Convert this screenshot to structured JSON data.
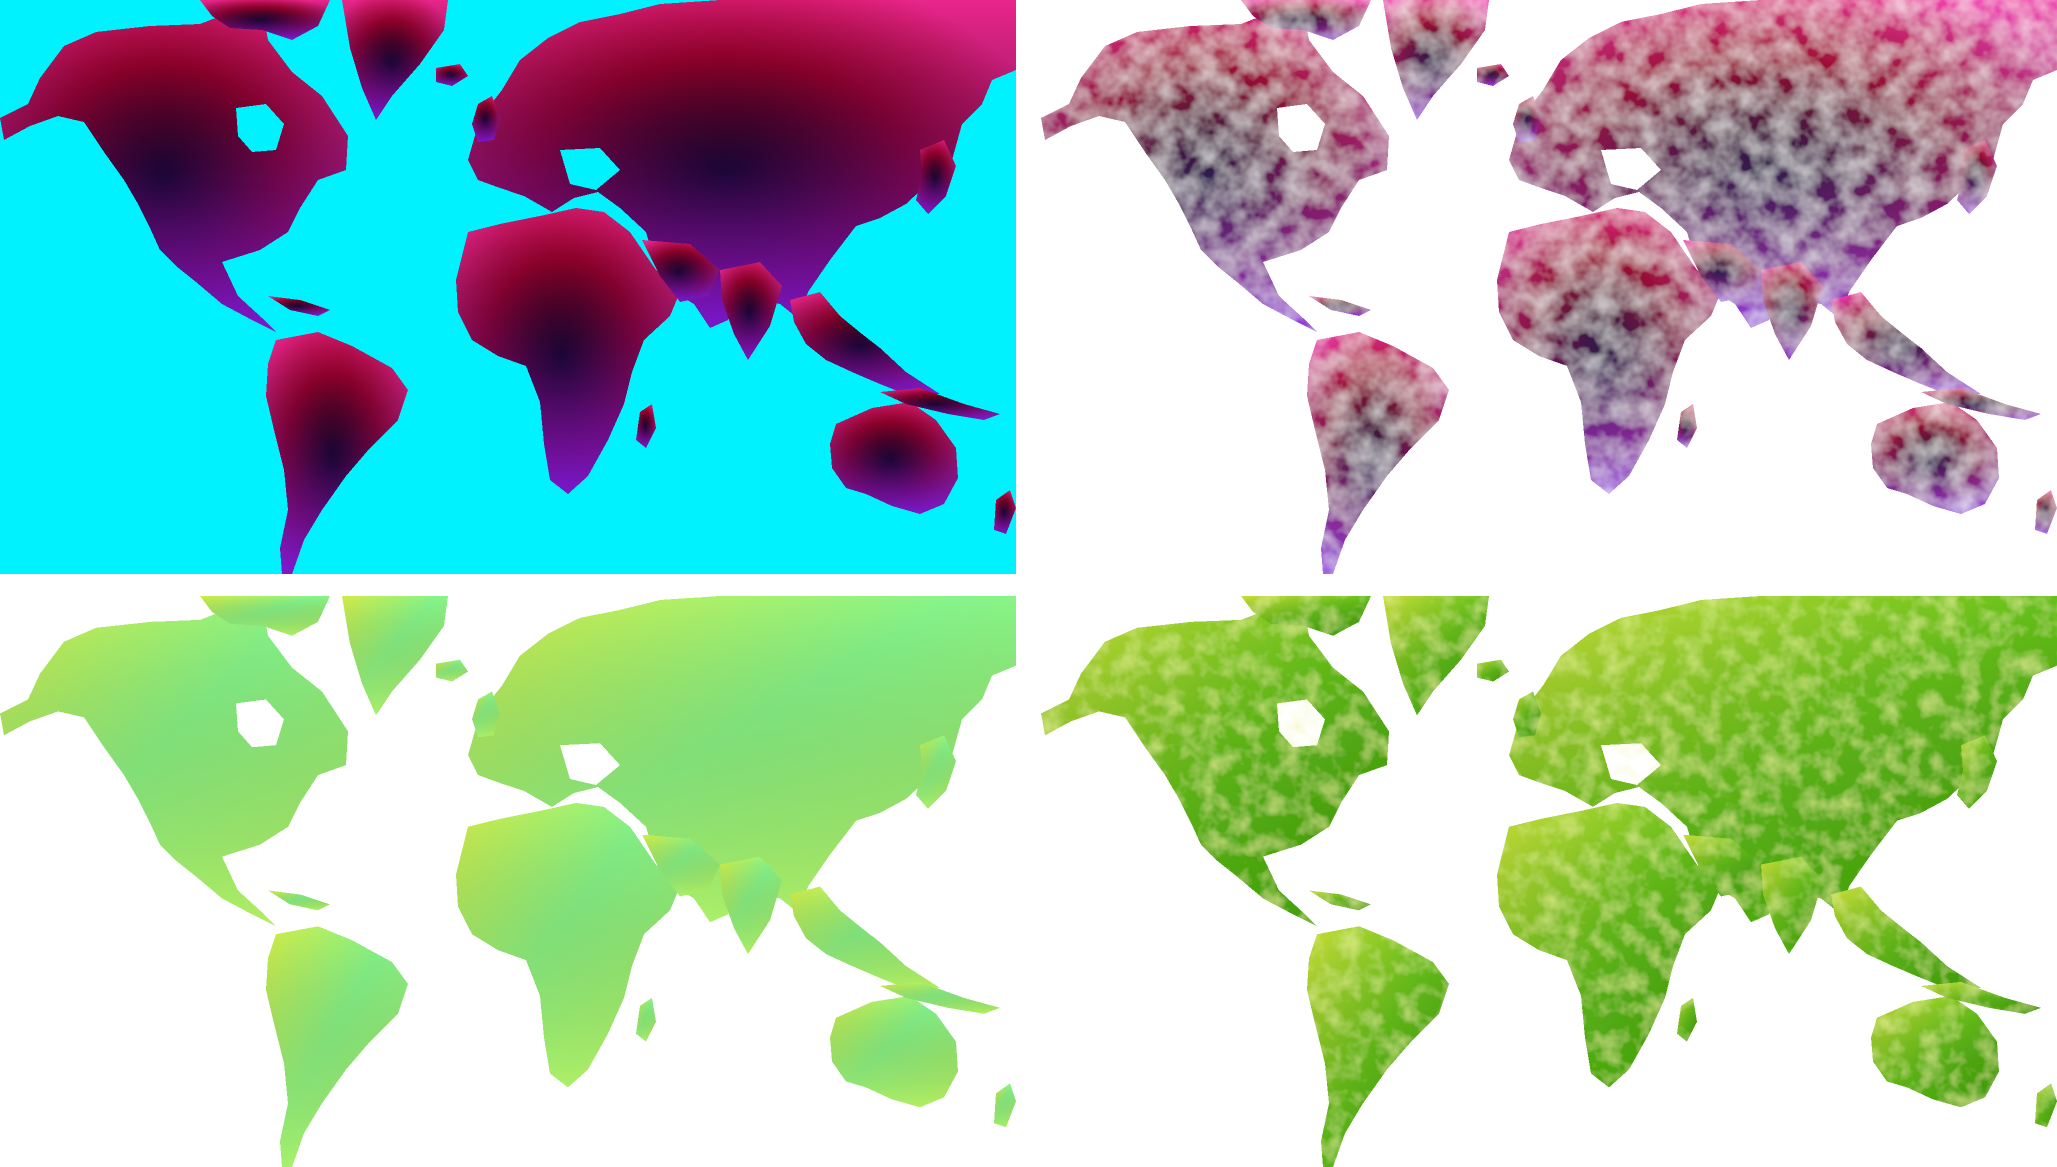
{
  "panels": [
    {
      "id": "position-encoding-map",
      "ocean_color": "#00F2FF",
      "land_style": "position-gradient",
      "colors": {
        "northwest": "#E8258A",
        "center_dark": "#050008",
        "east_red": "#A0002A",
        "south": "#6B18E0",
        "far_east": "#E8207A"
      }
    },
    {
      "id": "shaded-position-encoding-map",
      "ocean_color": "#FFFFFF",
      "land_style": "position-gradient-with-relief",
      "colors": {
        "northwest": "#F040B0",
        "center_dark": "#1A1628",
        "east_red": "#B8103A",
        "south": "#8A40F0",
        "far_east": "#F04AA0"
      }
    },
    {
      "id": "flat-vegetation-map",
      "ocean_color": "#FFFFFF",
      "land_style": "flat-green",
      "colors": {
        "base": "#A8F06A",
        "light": "#D2EC48",
        "mint": "#86F58A"
      }
    },
    {
      "id": "shaded-vegetation-map",
      "ocean_color": "#FFFFFF",
      "land_style": "green-with-relief",
      "colors": {
        "base": "#66C01A",
        "dark": "#3A9A08",
        "light": "#C8DE3A"
      }
    }
  ]
}
